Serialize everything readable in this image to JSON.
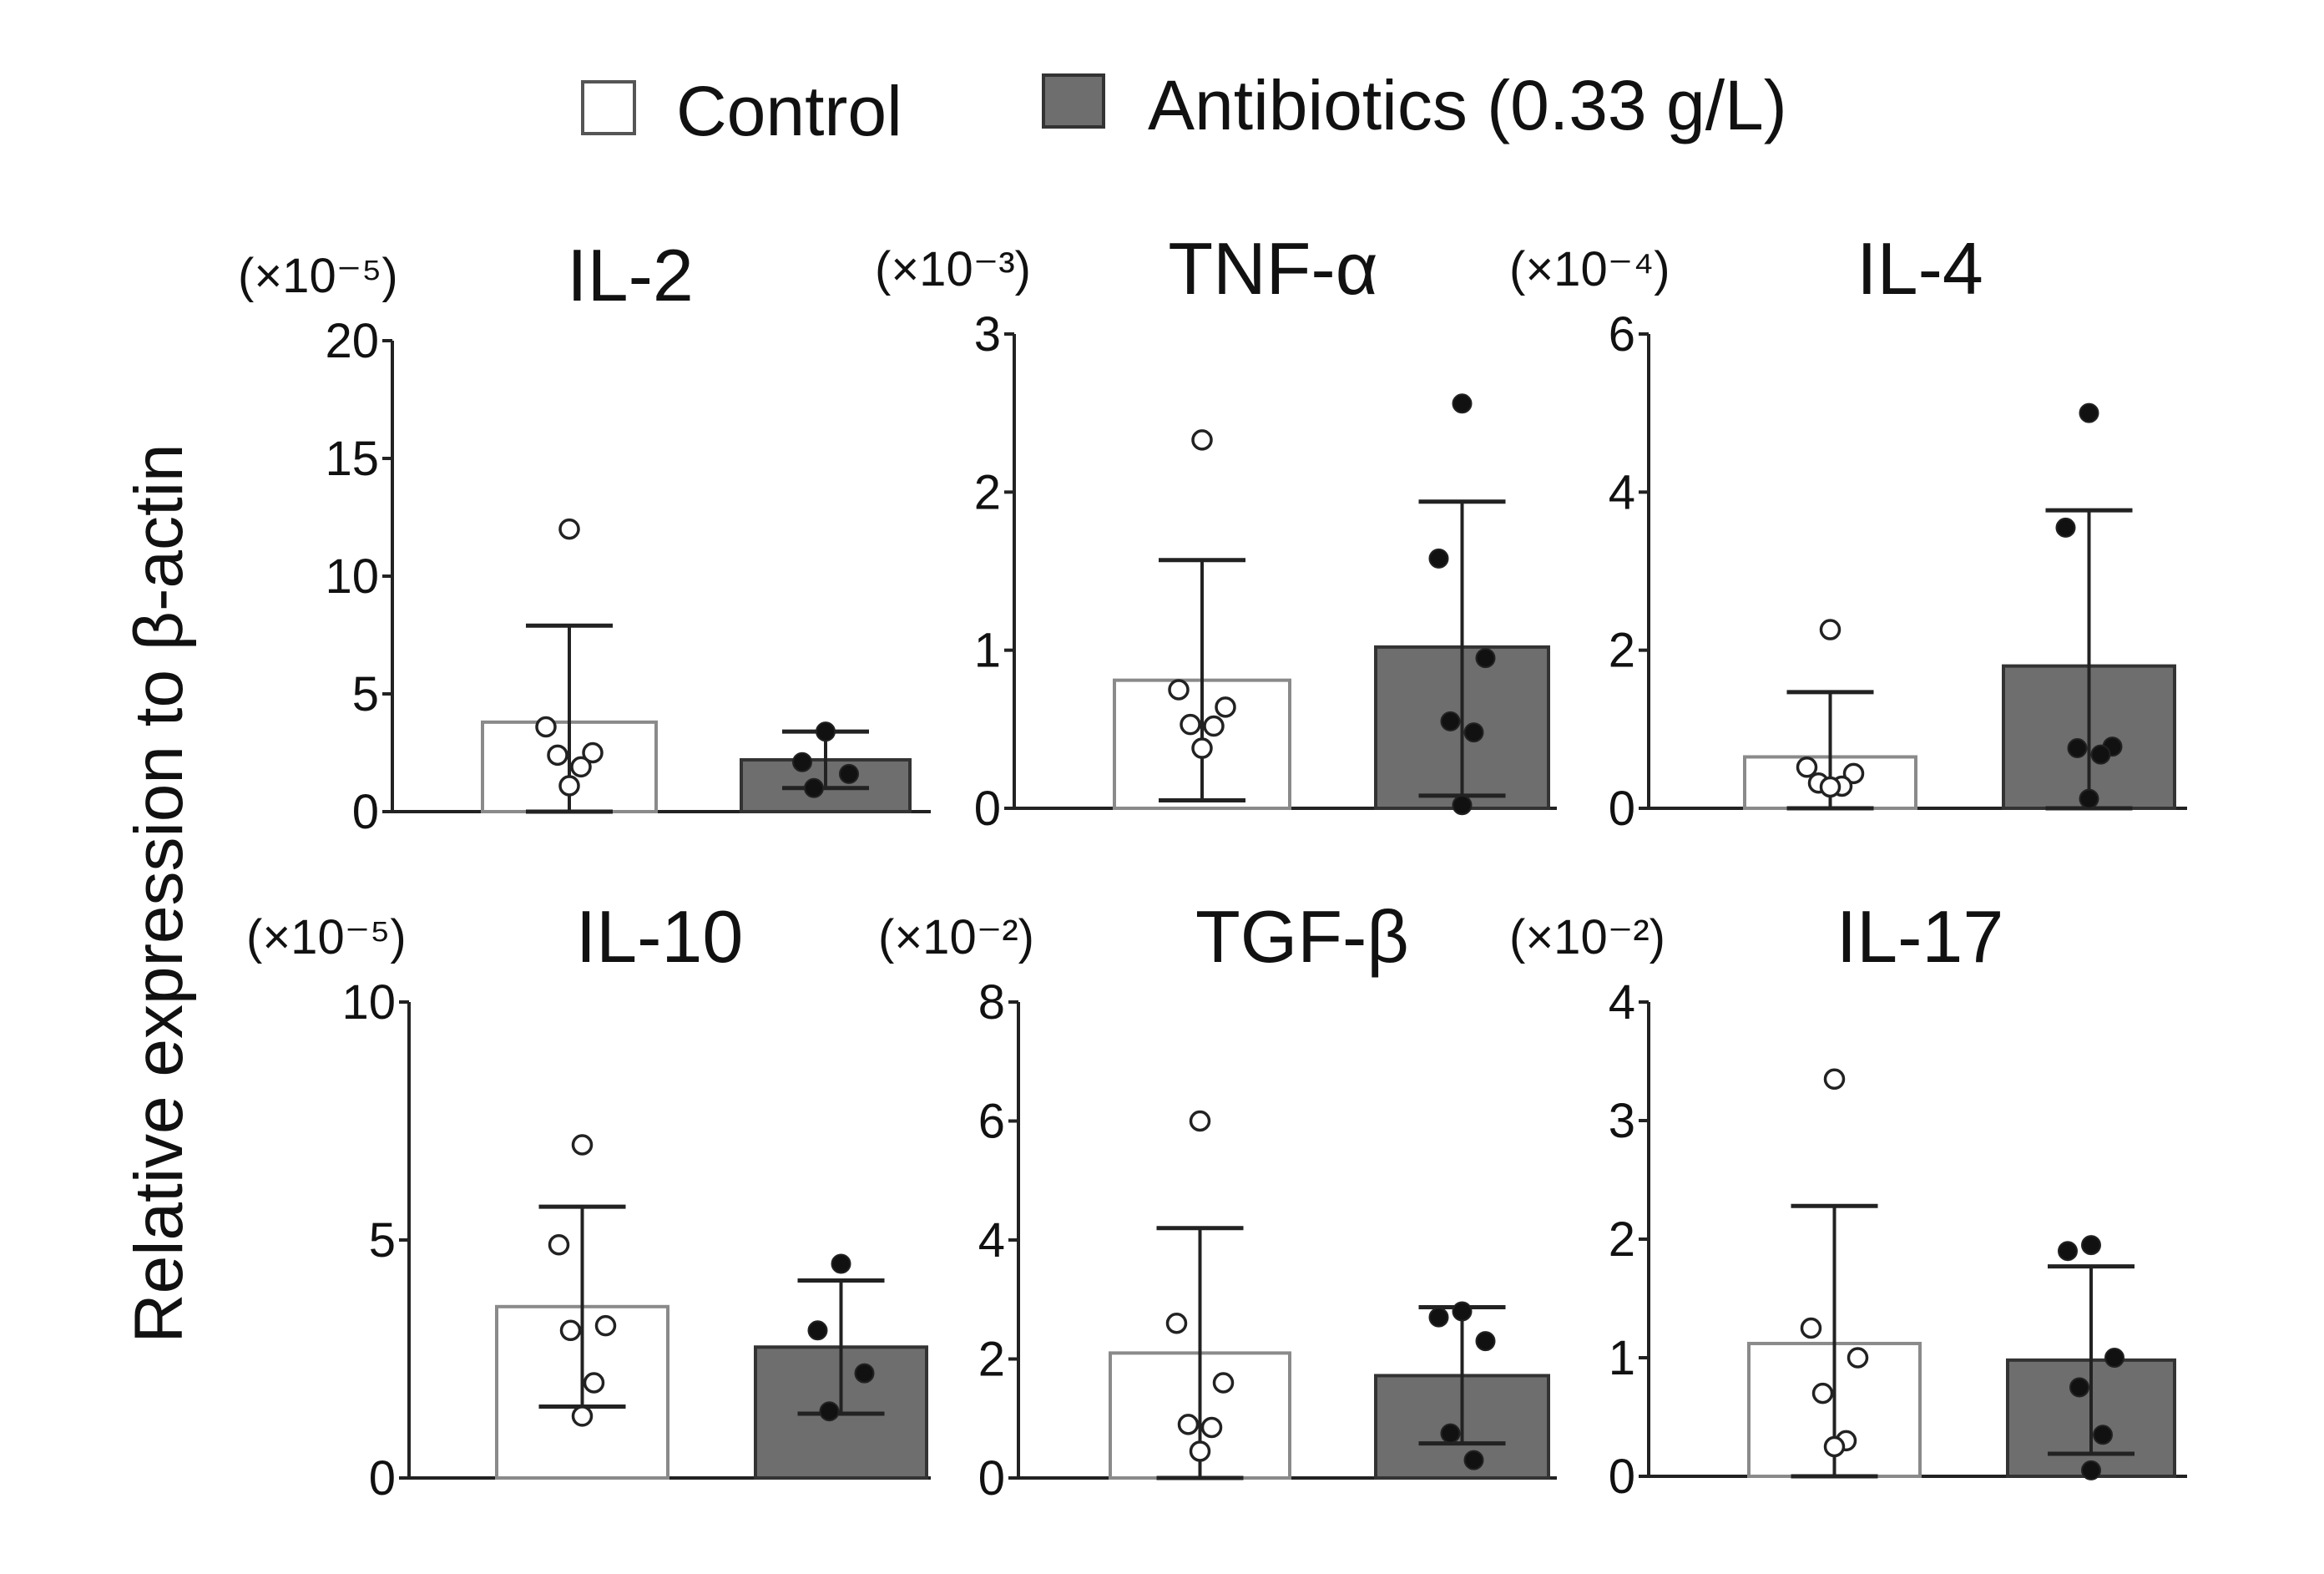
{
  "figure": {
    "y_axis_label": "Relative expression to β-actin",
    "legend": [
      {
        "label": "Control",
        "fill": "#ffffff",
        "stroke": "#333333"
      },
      {
        "label": "Antibiotics (0.33 g/L)",
        "fill": "#6e6e6e",
        "stroke": "#333333"
      }
    ]
  },
  "chart_data": [
    {
      "type": "bar",
      "title": "IL-2",
      "scale": "(×10⁻⁵)",
      "ylim": [
        0,
        20
      ],
      "ticks": [
        "0",
        "5",
        "10",
        "15",
        "20"
      ],
      "categories": [
        "Control",
        "Antibiotics (0.33 g/L)"
      ],
      "values": [
        3.8,
        2.2
      ],
      "error_upper": [
        7.9,
        3.4
      ],
      "error_lower": [
        0.0,
        1.0
      ],
      "points": [
        [
          12.0,
          3.6,
          2.5,
          2.4,
          1.9,
          1.1
        ],
        [
          3.4,
          2.1,
          1.6,
          1.0
        ]
      ]
    },
    {
      "type": "bar",
      "title": "TNF-α",
      "scale": "(×10⁻³)",
      "ylim": [
        0,
        3
      ],
      "ticks": [
        "0",
        "1",
        "2",
        "3"
      ],
      "categories": [
        "Control",
        "Antibiotics (0.33 g/L)"
      ],
      "values": [
        0.81,
        1.02
      ],
      "error_upper": [
        1.57,
        1.94
      ],
      "error_lower": [
        0.05,
        0.08
      ],
      "points": [
        [
          2.33,
          0.75,
          0.64,
          0.53,
          0.52,
          0.38
        ],
        [
          2.56,
          1.58,
          0.95,
          0.55,
          0.48,
          0.02
        ]
      ]
    },
    {
      "type": "bar",
      "title": "IL-4",
      "scale": "(×10⁻⁴)",
      "ylim": [
        0,
        6
      ],
      "ticks": [
        "0",
        "2",
        "4",
        "6"
      ],
      "categories": [
        "Control",
        "Antibiotics (0.33 g/L)"
      ],
      "values": [
        0.65,
        1.8
      ],
      "error_upper": [
        1.47,
        3.77
      ],
      "error_lower": [
        0.0,
        0.0
      ],
      "points": [
        [
          2.26,
          0.52,
          0.44,
          0.32,
          0.28,
          0.27
        ],
        [
          5.0,
          3.55,
          0.78,
          0.76,
          0.68,
          0.12
        ]
      ]
    },
    {
      "type": "bar",
      "title": "IL-10",
      "scale": "(×10⁻⁵)",
      "ylim": [
        0,
        10
      ],
      "ticks": [
        "0",
        "5",
        "10"
      ],
      "categories": [
        "Control",
        "Antibiotics (0.33 g/L)"
      ],
      "values": [
        3.6,
        2.75
      ],
      "error_upper": [
        5.7,
        4.15
      ],
      "error_lower": [
        1.5,
        1.35
      ],
      "points": [
        [
          7.0,
          4.9,
          3.2,
          3.1,
          2.0,
          1.3
        ],
        [
          4.5,
          3.1,
          2.2,
          1.4
        ]
      ]
    },
    {
      "type": "bar",
      "title": "TGF-β",
      "scale": "(×10⁻²)",
      "ylim": [
        0,
        8
      ],
      "ticks": [
        "0",
        "2",
        "4",
        "6",
        "8"
      ],
      "categories": [
        "Control",
        "Antibiotics (0.33 g/L)"
      ],
      "values": [
        2.1,
        1.72
      ],
      "error_upper": [
        4.2,
        2.87
      ],
      "error_lower": [
        0.0,
        0.58
      ],
      "points": [
        [
          6.0,
          2.6,
          1.6,
          0.9,
          0.85,
          0.45
        ],
        [
          2.8,
          2.7,
          2.3,
          0.75,
          0.3
        ]
      ]
    },
    {
      "type": "bar",
      "title": "IL-17",
      "scale": "(×10⁻²)",
      "ylim": [
        0,
        4
      ],
      "ticks": [
        "0",
        "1",
        "2",
        "3",
        "4"
      ],
      "categories": [
        "Control",
        "Antibiotics (0.33 g/L)"
      ],
      "values": [
        1.12,
        0.98
      ],
      "error_upper": [
        2.28,
        1.77
      ],
      "error_lower": [
        0.0,
        0.19
      ],
      "points": [
        [
          3.35,
          1.25,
          1.0,
          0.7,
          0.3,
          0.25
        ],
        [
          1.95,
          1.9,
          1.0,
          0.75,
          0.35,
          0.05
        ]
      ]
    }
  ]
}
